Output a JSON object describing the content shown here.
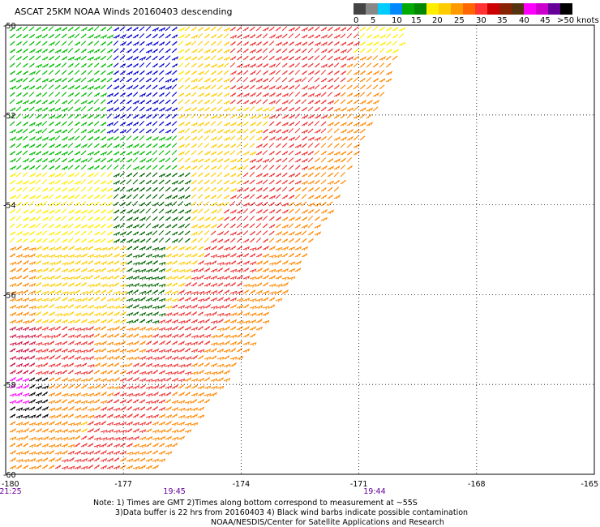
{
  "header": {
    "title": "ASCAT 25KM NOAA Winds 20160403 descending"
  },
  "legend": {
    "unit_label": "knots",
    "colors": [
      "#444444",
      "#888888",
      "#00ccff",
      "#0088ff",
      "#00aa00",
      "#008800",
      "#ffee00",
      "#ffcc00",
      "#ff9900",
      "#ff6600",
      "#ff3333",
      "#cc0000",
      "#882200",
      "#553311",
      "#ff00ff",
      "#cc00cc",
      "#660099",
      "#000000"
    ],
    "labels": [
      "0",
      "5",
      "10",
      "15",
      "20",
      "25",
      "30",
      "35",
      "40",
      "45",
      ">50 knots"
    ]
  },
  "map": {
    "lat_labels": [
      "-50",
      "-52",
      "-54",
      "-56",
      "-58",
      "-60"
    ],
    "lon_labels": [
      "-180",
      "-177",
      "-174",
      "-171",
      "-168",
      "-165"
    ],
    "time_labels": [
      "21:25",
      "19:45",
      "19:44"
    ],
    "swath": "descending",
    "barb_colors": {
      "blue": "#0000cc",
      "green": "#00bb00",
      "dark_green": "#006600",
      "yellow": "#ffee00",
      "light_orange": "#ffcc00",
      "orange": "#ff8800",
      "red": "#ee3333",
      "crimson": "#cc1144",
      "magenta": "#ff00ff",
      "black": "#000000"
    }
  },
  "footer": {
    "note_line1": "Note: 1) Times are GMT 2)Times along bottom correspond to measurement at ~55S",
    "note_line2": "3)Data buffer is 22 hrs from 20160403 4) Black wind barbs indicate possible contamination",
    "credit": "NOAA/NESDIS/Center for Satellite Applications and Research"
  }
}
